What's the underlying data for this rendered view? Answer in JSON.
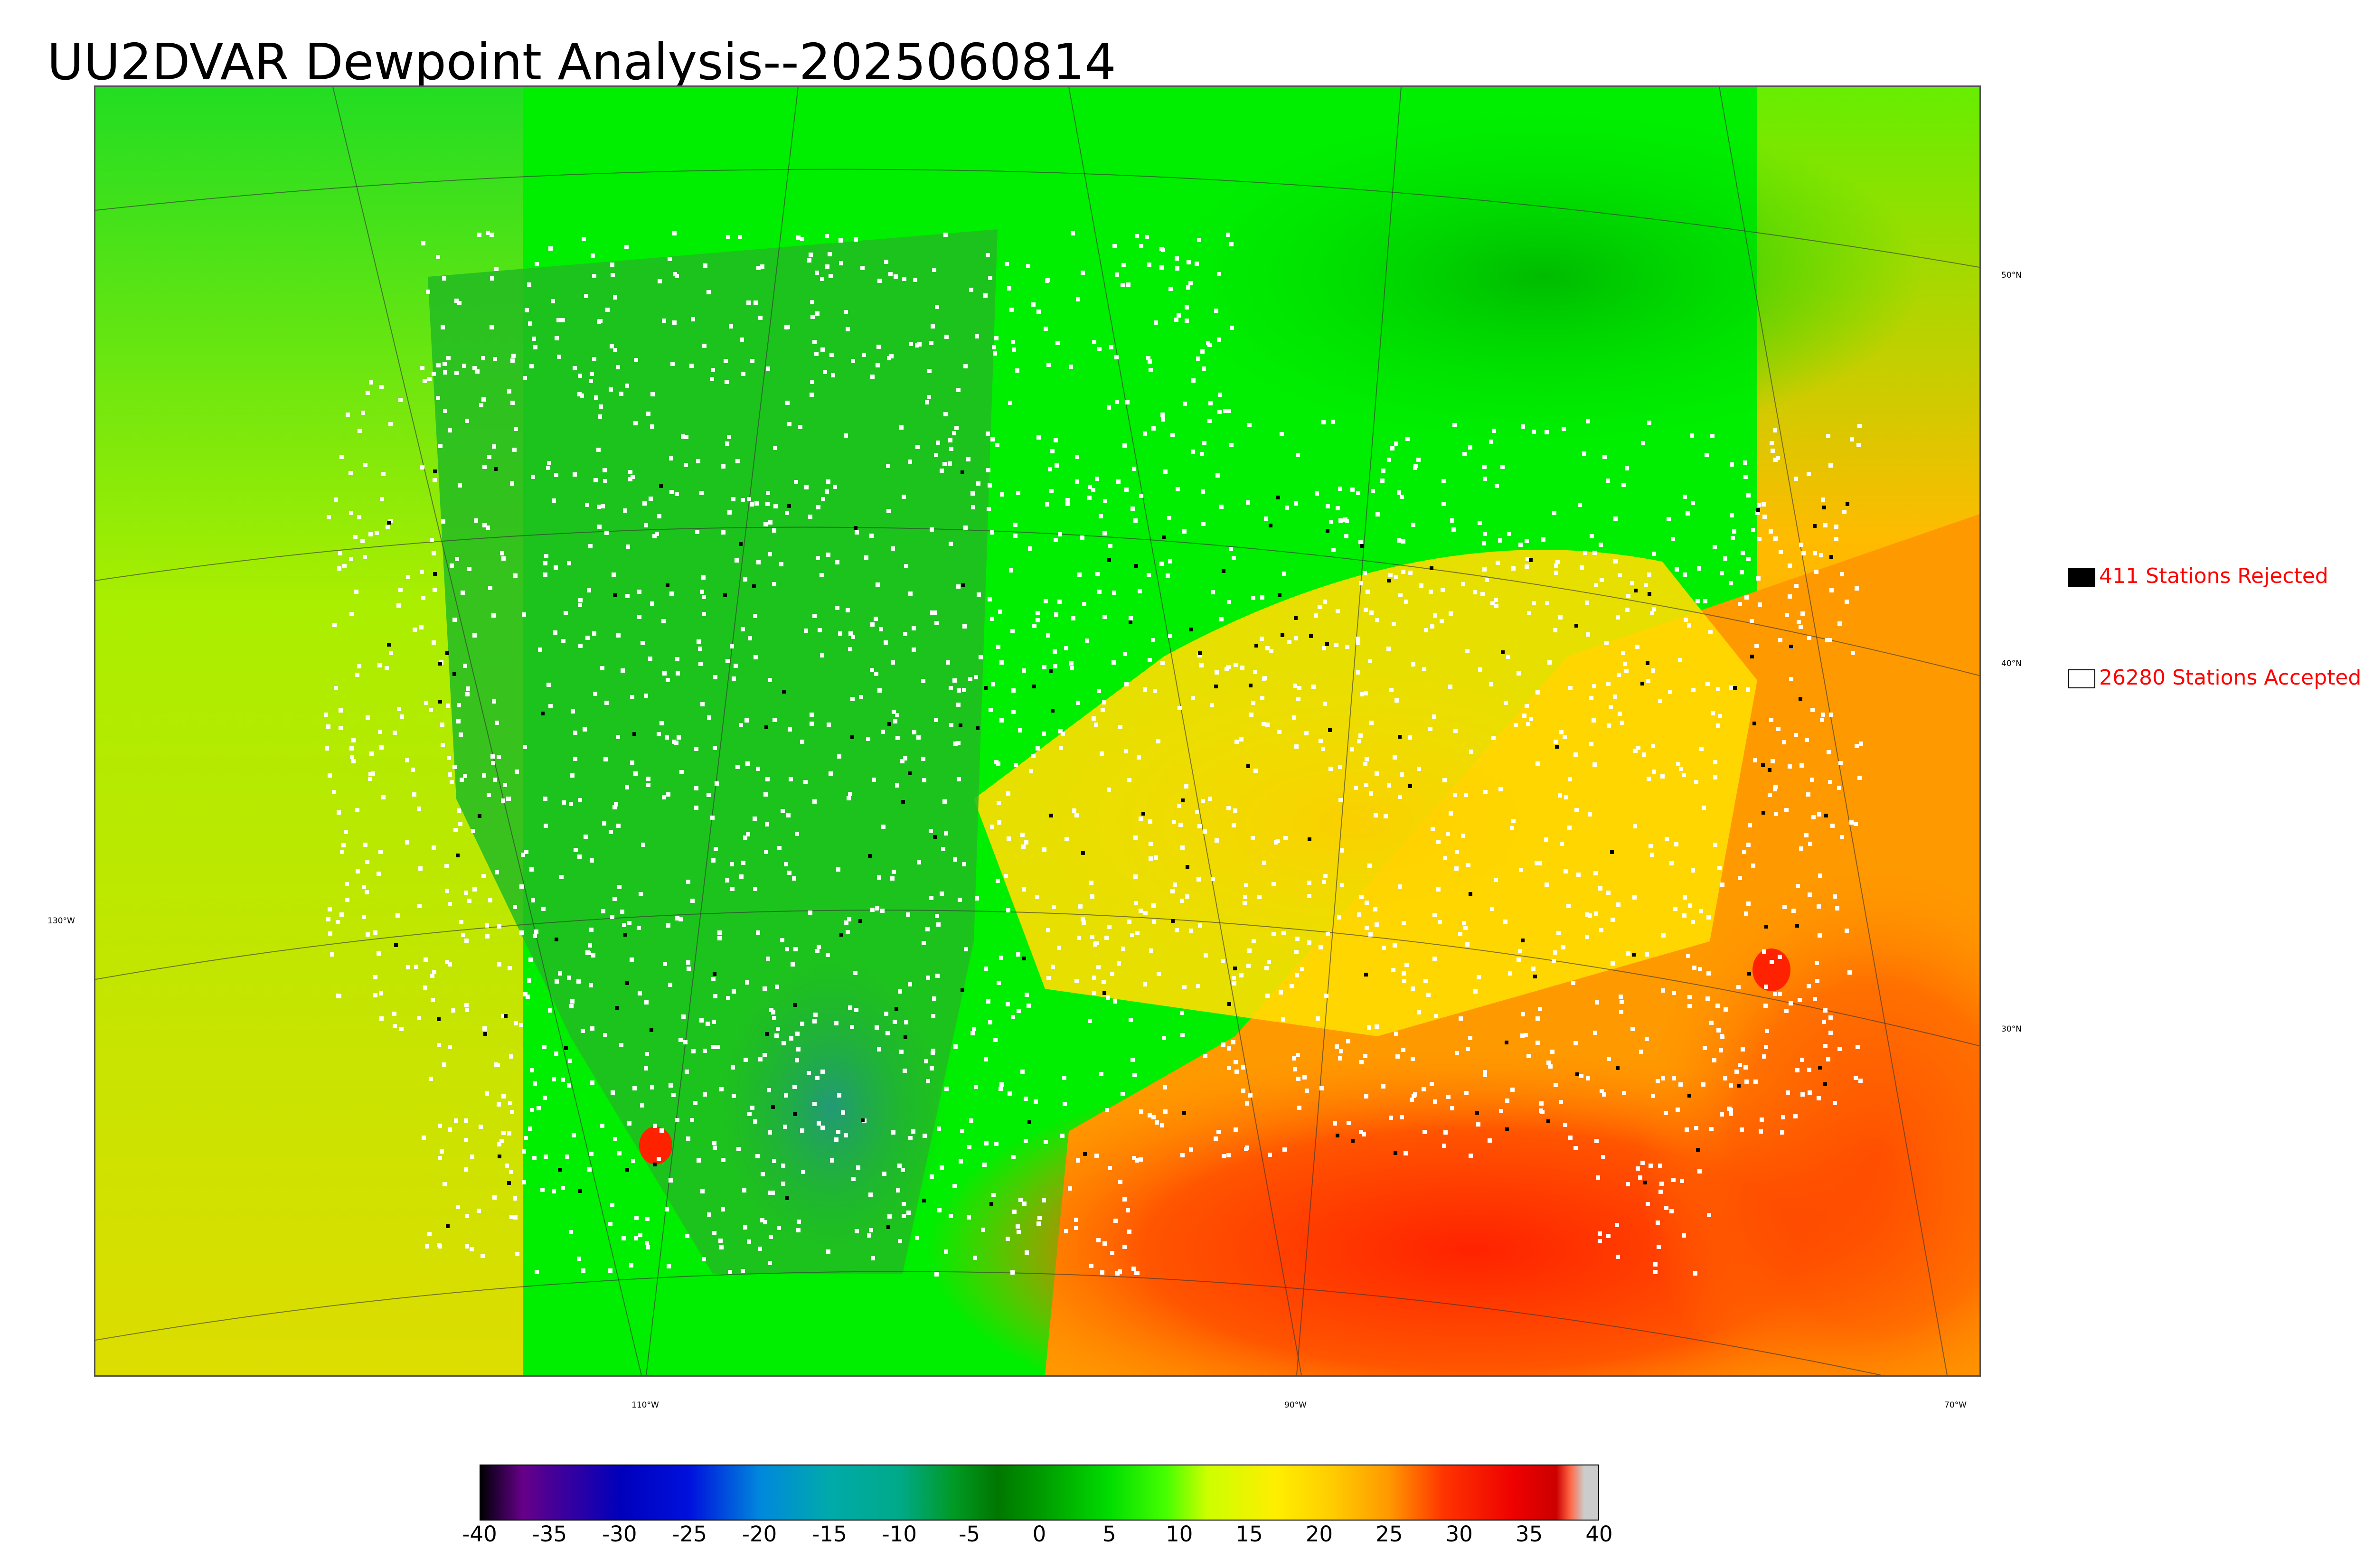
{
  "title": "UU2DVAR Dewpoint Analysis--2025060814",
  "map": {
    "lat_labels": [
      "50°N",
      "40°N",
      "30°N"
    ],
    "lon_labels": [
      "130°W",
      "110°W",
      "90°W",
      "70°W"
    ],
    "colors": {
      "land_cool": "#22bb22",
      "land_green": "#00ee00",
      "moist_yellow": "#ffdd00",
      "humid_orange": "#ff9900",
      "gulf_red": "#ff3300",
      "ocean_yellowgreen": "#c6ee00",
      "station_accepted": "#ffffff",
      "station_rejected": "#000000"
    }
  },
  "legend": {
    "rejected_label": "411 Stations Rejected",
    "accepted_label": "26280 Stations Accepted"
  },
  "colorbar": {
    "ticks": [
      "-40",
      "-35",
      "-30",
      "-25",
      "-20",
      "-15",
      "-10",
      "-5",
      "0",
      "5",
      "10",
      "15",
      "20",
      "25",
      "30",
      "35",
      "40"
    ],
    "range": [
      -40,
      40
    ],
    "stops": [
      {
        "v": -40,
        "c": "#000000"
      },
      {
        "v": -39,
        "c": "#220033"
      },
      {
        "v": -37,
        "c": "#660088"
      },
      {
        "v": -30,
        "c": "#0000bb"
      },
      {
        "v": -25,
        "c": "#0011dd"
      },
      {
        "v": -20,
        "c": "#0088dd"
      },
      {
        "v": -15,
        "c": "#00aaaa"
      },
      {
        "v": -10,
        "c": "#00aa88"
      },
      {
        "v": -6,
        "c": "#009922"
      },
      {
        "v": -3,
        "c": "#007700"
      },
      {
        "v": 0,
        "c": "#009900"
      },
      {
        "v": 5,
        "c": "#00dd00"
      },
      {
        "v": 9,
        "c": "#44ff00"
      },
      {
        "v": 12,
        "c": "#ccff00"
      },
      {
        "v": 17,
        "c": "#ffee00"
      },
      {
        "v": 21,
        "c": "#ffcc00"
      },
      {
        "v": 25,
        "c": "#ff9900"
      },
      {
        "v": 29,
        "c": "#ff3300"
      },
      {
        "v": 34,
        "c": "#ee0000"
      },
      {
        "v": 37,
        "c": "#cc0000"
      },
      {
        "v": 38,
        "c": "#ff6644"
      },
      {
        "v": 39,
        "c": "#cccccc"
      },
      {
        "v": 40,
        "c": "#cccccc"
      }
    ]
  }
}
